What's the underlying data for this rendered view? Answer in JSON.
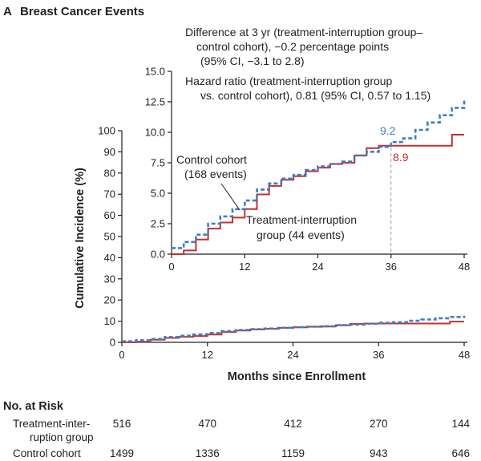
{
  "panel": {
    "letter": "A",
    "title": "Breast Cancer Events"
  },
  "colors": {
    "control": "#3d7fc1",
    "treatment": "#c4302b",
    "axis": "#231f20",
    "refline": "#9a9a9a"
  },
  "chart_data": [
    {
      "id": "main",
      "type": "line",
      "style": "step",
      "xlabel": "Months since Enrollment",
      "ylabel": "Cumulative Incidence (%)",
      "xlim": [
        0,
        48
      ],
      "ylim": [
        0,
        100
      ],
      "xticks": [
        "0",
        "12",
        "24",
        "36",
        "48"
      ],
      "yticks": [
        "0",
        "10",
        "20",
        "30",
        "40",
        "50",
        "60",
        "70",
        "80",
        "90",
        "100"
      ],
      "series": [
        {
          "name": "Control cohort",
          "style": "dashed",
          "x": [
            0,
            2,
            4,
            6,
            8,
            10,
            12,
            14,
            16,
            18,
            20,
            22,
            24,
            26,
            28,
            30,
            32,
            34,
            36,
            38,
            40,
            42,
            44,
            46,
            48
          ],
          "y": [
            0.5,
            1.0,
            1.6,
            2.5,
            3.1,
            3.7,
            4.4,
            5.3,
            5.8,
            6.2,
            6.5,
            6.9,
            7.2,
            7.4,
            7.6,
            8.1,
            8.4,
            8.8,
            9.2,
            9.5,
            10.2,
            10.8,
            11.4,
            12.0,
            12.6
          ]
        },
        {
          "name": "Treatment-interruption group",
          "style": "solid",
          "x": [
            0,
            2,
            4,
            6,
            8,
            10,
            12,
            14,
            16,
            18,
            20,
            22,
            24,
            26,
            28,
            30,
            32,
            34,
            36,
            40,
            46,
            48
          ],
          "y": [
            0.0,
            0.3,
            1.2,
            2.1,
            2.6,
            3.0,
            3.7,
            4.9,
            5.6,
            6.1,
            6.4,
            6.8,
            7.1,
            7.4,
            7.5,
            8.1,
            8.7,
            8.9,
            8.9,
            8.9,
            9.8,
            9.8
          ]
        }
      ]
    },
    {
      "id": "inset",
      "type": "line",
      "style": "step",
      "xlim": [
        0,
        48
      ],
      "ylim": [
        0,
        15
      ],
      "xticks": [
        "0",
        "12",
        "24",
        "36",
        "48"
      ],
      "yticks": [
        "0.0",
        "2.5",
        "5.0",
        "7.5",
        "10.0",
        "12.5",
        "15.0"
      ],
      "reference_line_x": 36,
      "data_labels": [
        {
          "series": "Control cohort",
          "x": 36,
          "text": "9.2"
        },
        {
          "series": "Treatment-interruption group",
          "x": 36,
          "text": "8.9"
        }
      ],
      "annotations": [
        {
          "lines": [
            "Difference at 3 yr (treatment-interruption group–",
            "control cohort), −0.2 percentage points",
            "(95% CI, −3.1 to 2.8)"
          ]
        },
        {
          "lines": [
            "Hazard ratio (treatment-interruption group",
            "vs. control cohort), 0.81 (95% CI, 0.57 to 1.15)"
          ]
        },
        {
          "lines": [
            "Control cohort",
            "(168 events)"
          ]
        },
        {
          "lines": [
            "Treatment-interruption",
            "group (44 events)"
          ]
        }
      ],
      "series": [
        {
          "name": "Control cohort",
          "style": "dashed",
          "x": [
            0,
            2,
            4,
            6,
            8,
            10,
            12,
            14,
            16,
            18,
            20,
            22,
            24,
            26,
            28,
            30,
            32,
            34,
            36,
            38,
            40,
            42,
            44,
            46,
            48
          ],
          "y": [
            0.5,
            1.0,
            1.6,
            2.5,
            3.1,
            3.7,
            4.4,
            5.3,
            5.8,
            6.2,
            6.5,
            6.9,
            7.2,
            7.4,
            7.6,
            8.1,
            8.4,
            8.8,
            9.2,
            9.5,
            10.2,
            10.8,
            11.4,
            12.0,
            12.6
          ]
        },
        {
          "name": "Treatment-interruption group",
          "style": "solid",
          "x": [
            0,
            2,
            4,
            6,
            8,
            10,
            12,
            14,
            16,
            18,
            20,
            22,
            24,
            26,
            28,
            30,
            32,
            34,
            36,
            40,
            46,
            48
          ],
          "y": [
            0.0,
            0.3,
            1.2,
            2.1,
            2.6,
            3.0,
            3.7,
            4.9,
            5.6,
            6.1,
            6.4,
            6.8,
            7.1,
            7.4,
            7.5,
            8.1,
            8.7,
            8.9,
            8.9,
            8.9,
            9.8,
            9.8
          ]
        }
      ]
    }
  ],
  "risk_table": {
    "title": "No. at Risk",
    "rows": [
      {
        "label_lines": [
          "Treatment-inter-",
          "ruption group"
        ],
        "values": [
          "516",
          "470",
          "412",
          "270",
          "144"
        ]
      },
      {
        "label_lines": [
          "Control cohort"
        ],
        "values": [
          "1499",
          "1336",
          "1159",
          "943",
          "646"
        ]
      }
    ]
  }
}
